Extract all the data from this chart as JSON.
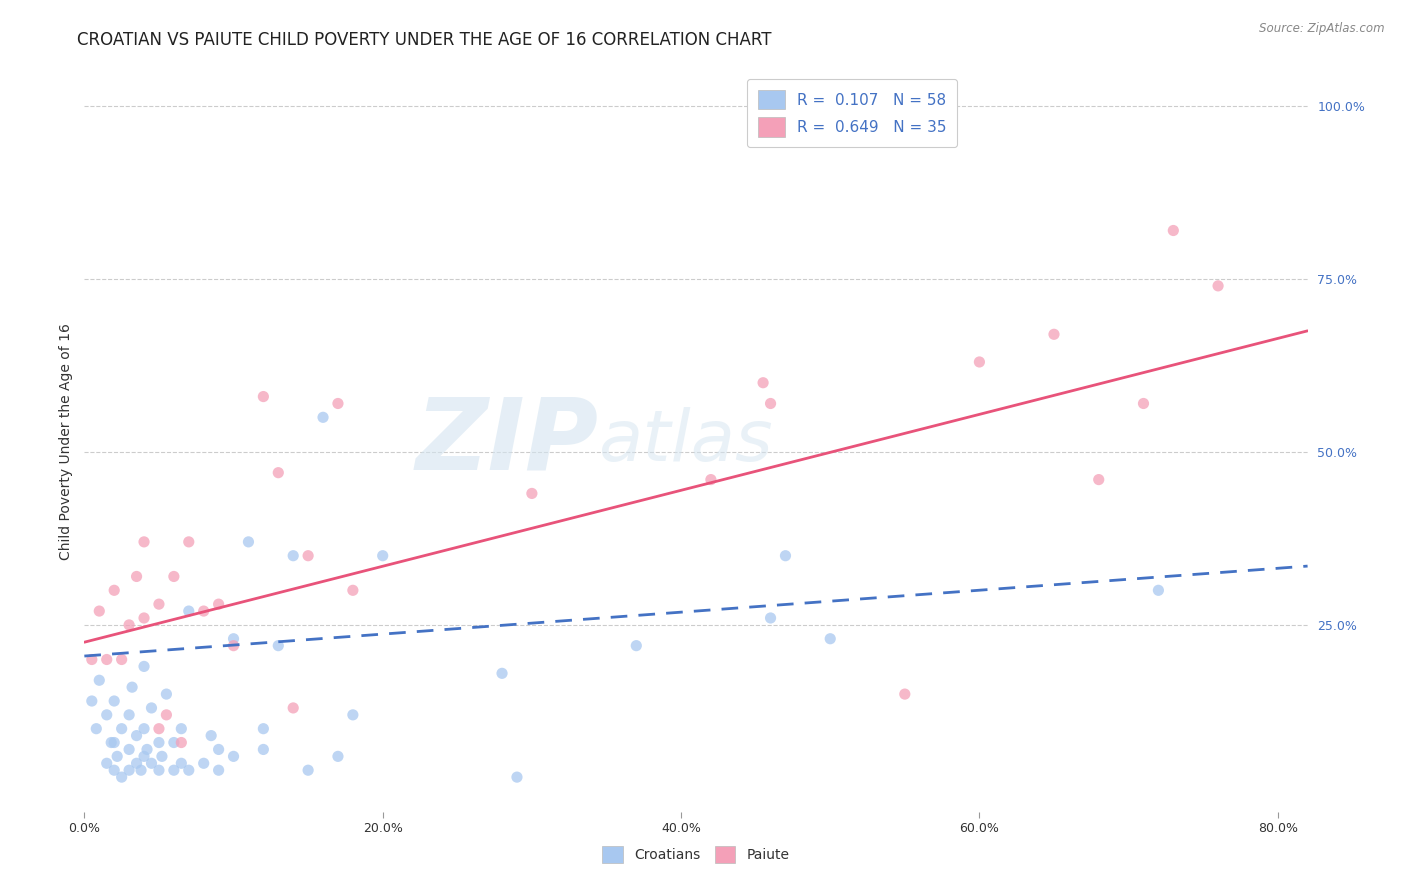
{
  "title": "CROATIAN VS PAIUTE CHILD POVERTY UNDER THE AGE OF 16 CORRELATION CHART",
  "source": "Source: ZipAtlas.com",
  "xlabel_ticks": [
    "0.0%",
    "20.0%",
    "40.0%",
    "60.0%",
    "80.0%"
  ],
  "ylabel": "Child Poverty Under the Age of 16",
  "xlim": [
    0,
    0.82
  ],
  "ylim": [
    -0.02,
    1.05
  ],
  "croatian_color": "#a8c8f0",
  "paiute_color": "#f4a0b8",
  "croatian_line_color": "#4472c4",
  "paiute_line_color": "#e8537a",
  "watermark_zip": "ZIP",
  "watermark_atlas": "atlas",
  "croatian_scatter_x": [
    0.005,
    0.008,
    0.01,
    0.015,
    0.015,
    0.018,
    0.02,
    0.02,
    0.02,
    0.022,
    0.025,
    0.025,
    0.03,
    0.03,
    0.03,
    0.032,
    0.035,
    0.035,
    0.038,
    0.04,
    0.04,
    0.04,
    0.042,
    0.045,
    0.045,
    0.05,
    0.05,
    0.052,
    0.055,
    0.06,
    0.06,
    0.065,
    0.065,
    0.07,
    0.07,
    0.08,
    0.085,
    0.09,
    0.09,
    0.1,
    0.1,
    0.11,
    0.12,
    0.12,
    0.13,
    0.14,
    0.15,
    0.16,
    0.17,
    0.18,
    0.2,
    0.28,
    0.29,
    0.37,
    0.46,
    0.47,
    0.5,
    0.72
  ],
  "croatian_scatter_y": [
    0.14,
    0.1,
    0.17,
    0.05,
    0.12,
    0.08,
    0.04,
    0.08,
    0.14,
    0.06,
    0.03,
    0.1,
    0.04,
    0.07,
    0.12,
    0.16,
    0.05,
    0.09,
    0.04,
    0.06,
    0.1,
    0.19,
    0.07,
    0.05,
    0.13,
    0.04,
    0.08,
    0.06,
    0.15,
    0.04,
    0.08,
    0.05,
    0.1,
    0.04,
    0.27,
    0.05,
    0.09,
    0.04,
    0.07,
    0.06,
    0.23,
    0.37,
    0.07,
    0.1,
    0.22,
    0.35,
    0.04,
    0.55,
    0.06,
    0.12,
    0.35,
    0.18,
    0.03,
    0.22,
    0.26,
    0.35,
    0.23,
    0.3
  ],
  "paiute_scatter_x": [
    0.005,
    0.01,
    0.015,
    0.02,
    0.025,
    0.03,
    0.035,
    0.04,
    0.04,
    0.05,
    0.05,
    0.055,
    0.06,
    0.065,
    0.07,
    0.08,
    0.09,
    0.1,
    0.12,
    0.13,
    0.14,
    0.15,
    0.17,
    0.18,
    0.3,
    0.42,
    0.455,
    0.46,
    0.55,
    0.6,
    0.65,
    0.68,
    0.71,
    0.73,
    0.76
  ],
  "paiute_scatter_y": [
    0.2,
    0.27,
    0.2,
    0.3,
    0.2,
    0.25,
    0.32,
    0.26,
    0.37,
    0.1,
    0.28,
    0.12,
    0.32,
    0.08,
    0.37,
    0.27,
    0.28,
    0.22,
    0.58,
    0.47,
    0.13,
    0.35,
    0.57,
    0.3,
    0.44,
    0.46,
    0.6,
    0.57,
    0.15,
    0.63,
    0.67,
    0.46,
    0.57,
    0.82,
    0.74
  ],
  "croatian_trend_x": [
    0.0,
    0.82
  ],
  "croatian_trend_y": [
    0.205,
    0.335
  ],
  "paiute_trend_x": [
    0.0,
    0.82
  ],
  "paiute_trend_y": [
    0.225,
    0.675
  ],
  "background_color": "#ffffff",
  "grid_color": "#cccccc",
  "title_fontsize": 12,
  "axis_label_fontsize": 10,
  "tick_fontsize": 9,
  "legend_fontsize": 11
}
